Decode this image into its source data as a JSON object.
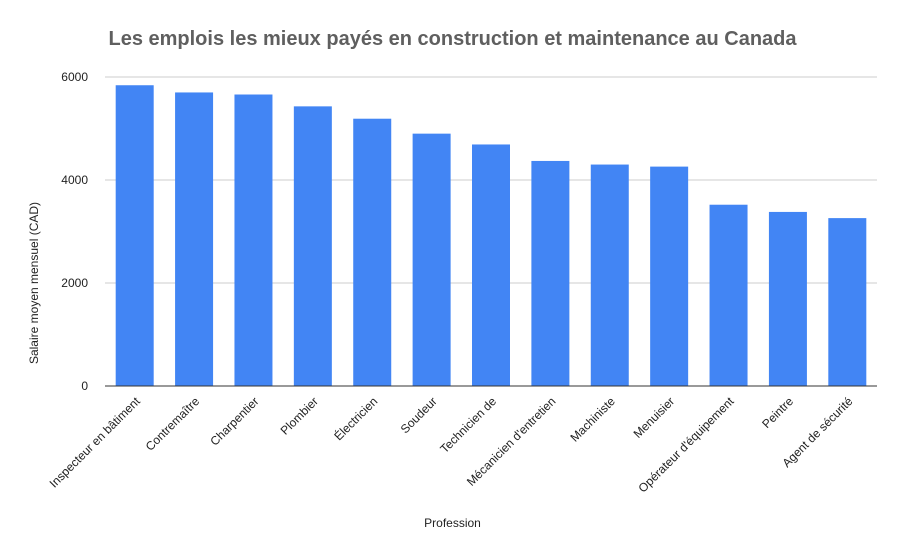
{
  "chart_data": {
    "type": "bar",
    "title": "Les emplois les mieux payés en construction et maintenance au Canada",
    "xlabel": "Profession",
    "ylabel": "Salaire moyen mensuel (CAD)",
    "ylim": [
      0,
      6000
    ],
    "yticks": [
      0,
      2000,
      4000,
      6000
    ],
    "grid": true,
    "legend": "none",
    "bar_color": "#4285f4",
    "categories": [
      "Inspecteur en bâtiment",
      "Contremaître",
      "Charpentier",
      "Plombier",
      "Électricien",
      "Soudeur",
      "Technicien de",
      "Mécanicien d'entretien",
      "Machiniste",
      "Menuisier",
      "Opérateur d'équipement",
      "Peintre",
      "Agent de sécurité"
    ],
    "values": [
      5840,
      5700,
      5660,
      5430,
      5190,
      4900,
      4690,
      4370,
      4300,
      4260,
      3520,
      3380,
      3260
    ]
  }
}
